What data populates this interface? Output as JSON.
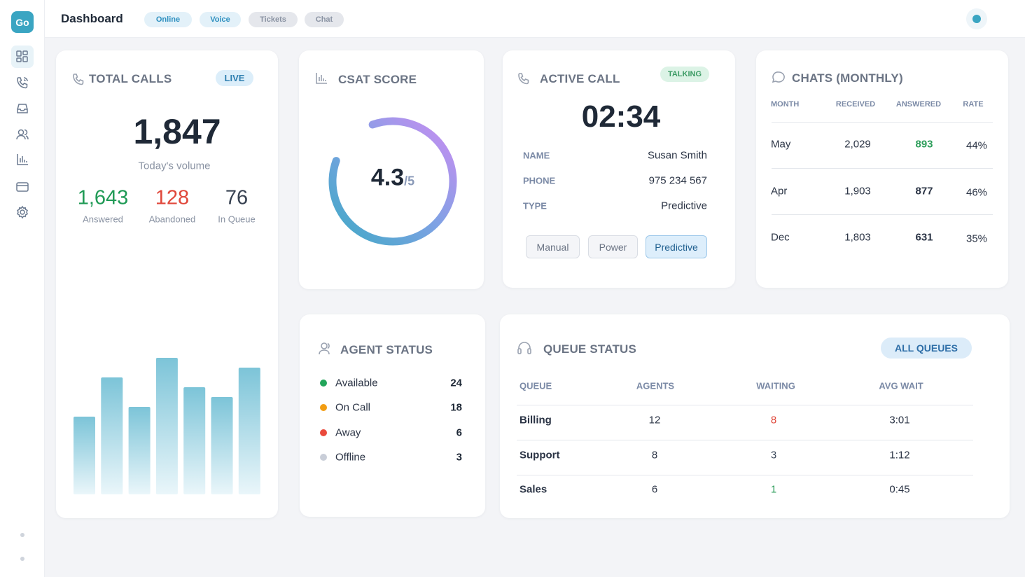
{
  "logo": "Go",
  "header": {
    "title": "Dashboard",
    "tabs": [
      {
        "label": "Online",
        "active": true
      },
      {
        "label": "Voice",
        "active": true
      },
      {
        "label": "Tickets",
        "active": false
      },
      {
        "label": "Chat",
        "active": false
      }
    ]
  },
  "total_calls": {
    "title": "TOTAL CALLS",
    "badge": "LIVE",
    "total": "1,847",
    "caption": "Today's volume",
    "stats": [
      {
        "value": "1,643",
        "label": "Answered",
        "color": "#1f9a55"
      },
      {
        "value": "128",
        "label": "Abandoned",
        "color": "#e0483b"
      },
      {
        "value": "76",
        "label": "In Queue",
        "color": "#374151"
      }
    ],
    "bars": [
      111,
      167,
      125,
      195,
      153,
      139,
      181
    ]
  },
  "csat": {
    "title": "CSAT SCORE",
    "score": 4.3,
    "out_of": {
      "value": 5,
      "label": "/5"
    }
  },
  "active_call": {
    "title": "ACTIVE CALL",
    "status": "TALKING",
    "timer": "02:34",
    "fields": [
      {
        "label": "NAME",
        "value": "Susan Smith"
      },
      {
        "label": "PHONE",
        "value": "975 234 567"
      },
      {
        "label": "TYPE",
        "value": "Predictive"
      }
    ],
    "modes": [
      "Manual",
      "Power",
      "Predictive"
    ],
    "selected_mode": 2
  },
  "chats": {
    "title": "CHATS (MONTHLY)",
    "columns": [
      "MONTH",
      "RECEIVED",
      "ANSWERED",
      "RATE"
    ],
    "rows": [
      {
        "cells": [
          "May",
          "2,029",
          "893",
          "44%"
        ],
        "answered_color": "#2e9e5b"
      },
      {
        "cells": [
          "Apr",
          "1,903",
          "877",
          "46%"
        ],
        "answered_color": "#2b3445"
      },
      {
        "cells": [
          "Dec",
          "1,803",
          "631",
          "35%"
        ],
        "answered_color": "#2b3445"
      }
    ]
  },
  "agent_status": {
    "title": "AGENT STATUS",
    "items": [
      {
        "status": "Available",
        "count": 24,
        "color": "#22a55a"
      },
      {
        "status": "On Call",
        "count": 18,
        "color": "#f29d12"
      },
      {
        "status": "Away",
        "count": 6,
        "color": "#ea4a3c"
      },
      {
        "status": "Offline",
        "count": 3,
        "color": "#c9ced8"
      }
    ]
  },
  "queue_status": {
    "title": "QUEUE STATUS",
    "button": "ALL QUEUES",
    "columns": [
      "QUEUE",
      "AGENTS",
      "WAITING",
      "AVG WAIT"
    ],
    "rows": [
      {
        "cells": [
          "Billing",
          "12",
          "8",
          "3:01"
        ],
        "waiting_color": "#e0483b"
      },
      {
        "cells": [
          "Support",
          "8",
          "3",
          "1:12"
        ],
        "waiting_color": "#3d4a5c"
      },
      {
        "cells": [
          "Sales",
          "6",
          "1",
          "0:45"
        ],
        "waiting_color": "#2e9e5b"
      }
    ]
  }
}
